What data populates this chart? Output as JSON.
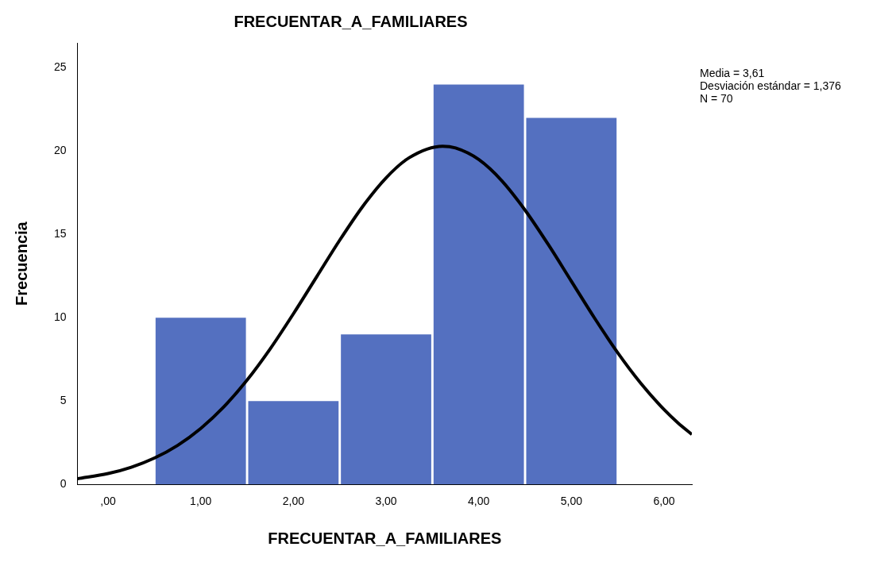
{
  "chart_data": {
    "type": "histogram",
    "title": "FRECUENTAR_A_FAMILIARES",
    "xlabel": "FRECUENTAR_A_FAMILIARES",
    "ylabel": "Frecuencia",
    "bins": [
      0.5,
      1.5,
      2.5,
      3.5,
      4.5,
      5.5
    ],
    "values": [
      10,
      5,
      9,
      24,
      22
    ],
    "color": "#5470c0",
    "series": [
      {
        "type": "line",
        "color": "#000000",
        "x": [
          -0.33,
          0,
          0.25,
          0.5,
          0.75,
          1,
          1.25,
          1.5,
          1.75,
          2,
          2.25,
          2.5,
          2.75,
          3,
          3.25,
          3.61,
          3.75,
          4,
          4.25,
          4.5,
          4.75,
          5,
          5.25,
          5.5,
          5.75,
          6,
          6.15,
          6.3
        ],
        "values": [
          0.34,
          0.65,
          1.03,
          1.58,
          2.34,
          3.36,
          4.66,
          6.26,
          8.14,
          10.24,
          12.45,
          14.66,
          16.7,
          18.4,
          19.61,
          20.3,
          20.19,
          19.5,
          18.22,
          16.46,
          14.4,
          12.19,
          9.98,
          7.9,
          6.06,
          4.49,
          3.69,
          3.0
        ]
      }
    ],
    "xlim": [
      -0.33,
      6.3
    ],
    "xticks": [
      {
        "value": 0,
        "label": ",00"
      },
      {
        "value": 1,
        "label": "1,00"
      },
      {
        "value": 2,
        "label": "2,00"
      },
      {
        "value": 3,
        "label": "3,00"
      },
      {
        "value": 4,
        "label": "4,00"
      },
      {
        "value": 5,
        "label": "5,00"
      },
      {
        "value": 6,
        "label": "6,00"
      }
    ],
    "ylim": [
      0,
      26.5
    ],
    "yticks": [
      0,
      5,
      10,
      15,
      20,
      25
    ],
    "grid": false,
    "legend": false,
    "annotations": [
      "Media = 3,61",
      "Desviación estándar = 1,376",
      "N = 70"
    ]
  }
}
